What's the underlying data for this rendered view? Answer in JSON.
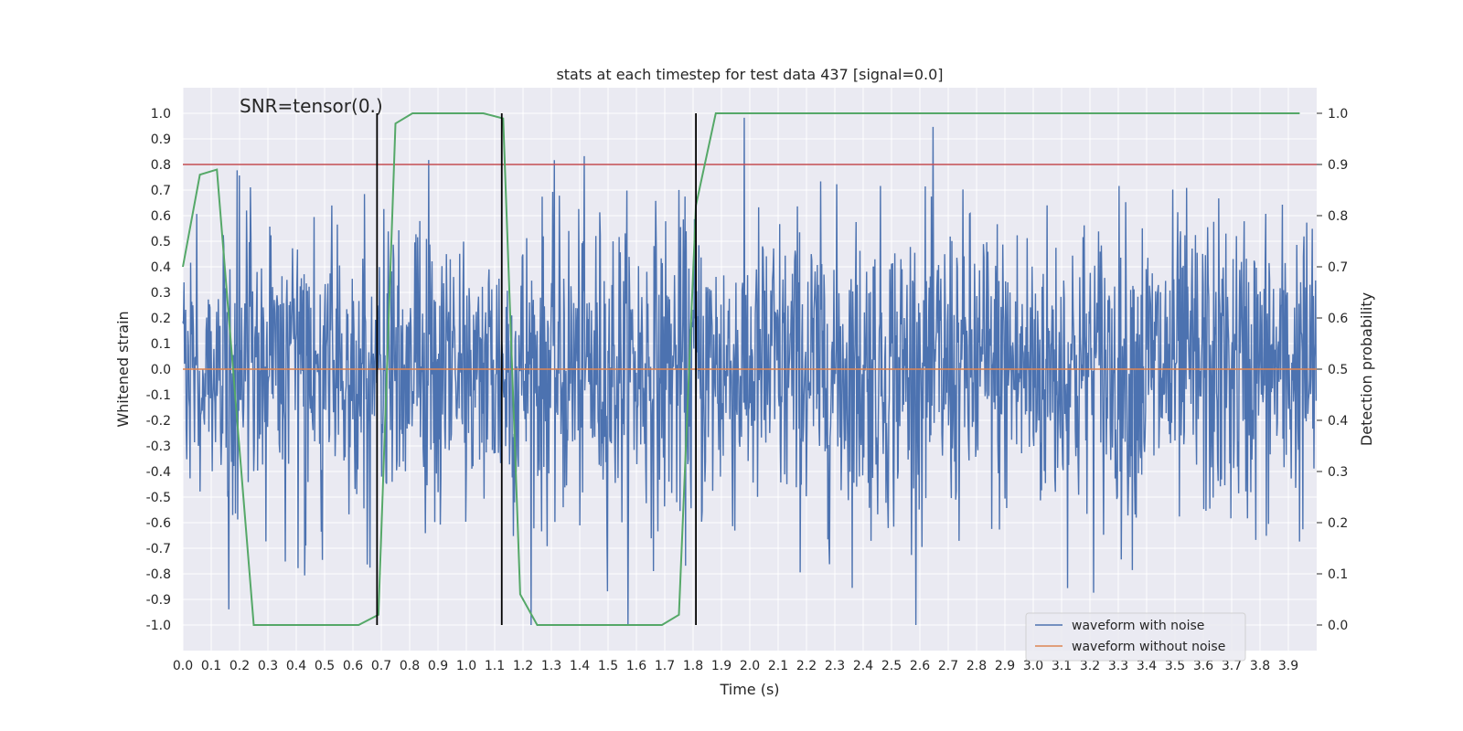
{
  "chart_data": {
    "type": "line",
    "title": "stats at each timestep for test data 437 [signal=0.0]",
    "xlabel": "Time (s)",
    "ylabel": "Whitened strain",
    "ylabel_right": "Detection probability",
    "xlim": [
      0.0,
      4.0
    ],
    "ylim": [
      -1.1,
      1.1
    ],
    "ylim_right": [
      -0.05,
      1.05
    ],
    "x_ticks": [
      "0.0",
      "0.1",
      "0.2",
      "0.3",
      "0.4",
      "0.5",
      "0.6",
      "0.7",
      "0.8",
      "0.9",
      "1.0",
      "1.1",
      "1.2",
      "1.3",
      "1.4",
      "1.5",
      "1.6",
      "1.7",
      "1.8",
      "1.9",
      "2.0",
      "2.1",
      "2.2",
      "2.3",
      "2.4",
      "2.5",
      "2.6",
      "2.7",
      "2.8",
      "2.9",
      "3.0",
      "3.1",
      "3.2",
      "3.3",
      "3.4",
      "3.5",
      "3.6",
      "3.7",
      "3.8",
      "3.9"
    ],
    "y_ticks": [
      "-1.0",
      "-0.9",
      "-0.8",
      "-0.7",
      "-0.6",
      "-0.5",
      "-0.4",
      "-0.3",
      "-0.2",
      "-0.1",
      "0.0",
      "0.1",
      "0.2",
      "0.3",
      "0.4",
      "0.5",
      "0.6",
      "0.7",
      "0.8",
      "0.9",
      "1.0"
    ],
    "y_ticks_right": [
      "0.0",
      "0.1",
      "0.2",
      "0.3",
      "0.4",
      "0.5",
      "0.6",
      "0.7",
      "0.8",
      "0.9",
      "1.0"
    ],
    "annotation": "SNR=tensor(0.)",
    "noise_seed": 437,
    "noise_samples": 2048,
    "noise_scale": 0.3,
    "series": [
      {
        "name": "waveform with noise",
        "color": "#4c72b0",
        "kind": "noise-strain"
      },
      {
        "name": "waveform without noise",
        "color": "#dd8452",
        "kind": "constant",
        "value": 0.0
      },
      {
        "name": "detection probability",
        "color": "#55a868",
        "axis": "right",
        "x": [
          0.0,
          0.06,
          0.12,
          0.25,
          0.31,
          0.62,
          0.69,
          0.75,
          0.81,
          1.06,
          1.13,
          1.19,
          1.25,
          1.56,
          1.69,
          1.75,
          1.81,
          1.88,
          3.94
        ],
        "y": [
          0.7,
          0.88,
          0.89,
          0.0,
          0.0,
          0.0,
          0.02,
          0.98,
          1.0,
          1.0,
          0.99,
          0.06,
          0.0,
          0.0,
          0.0,
          0.02,
          0.82,
          1.0,
          1.0
        ]
      }
    ],
    "threshold": {
      "value": 0.9,
      "axis": "right",
      "color": "#c44e52"
    },
    "vlines": [
      0.685,
      1.125,
      1.81
    ],
    "legend": {
      "placement": "lower-right",
      "items": [
        {
          "label": "waveform with noise",
          "color": "#4c72b0"
        },
        {
          "label": "waveform without noise",
          "color": "#dd8452"
        }
      ]
    }
  }
}
